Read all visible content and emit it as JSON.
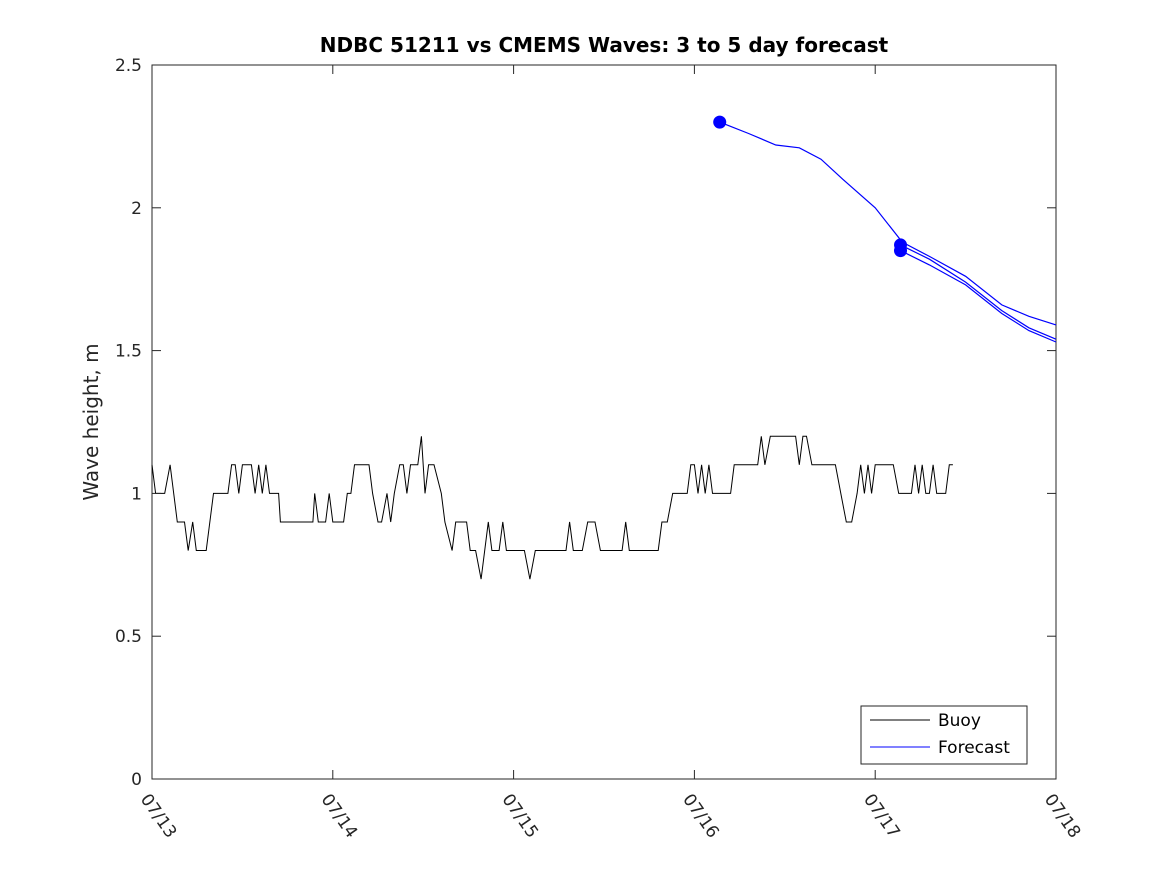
{
  "chart_data": {
    "type": "line",
    "title": "NDBC 51211 vs CMEMS Waves: 3 to 5 day forecast",
    "xlabel": "",
    "ylabel": "Wave height, m",
    "xlim": [
      0,
      5
    ],
    "ylim": [
      0,
      2.5
    ],
    "x_tick_labels": [
      "07/13",
      "07/14",
      "07/15",
      "07/16",
      "07/17",
      "07/18"
    ],
    "y_tick_labels": [
      "0",
      "0.5",
      "1",
      "1.5",
      "2",
      "2.5"
    ],
    "y_ticks": [
      0,
      0.5,
      1,
      1.5,
      2,
      2.5
    ],
    "grid": false,
    "legend": {
      "placement": "bottom-right",
      "entries": [
        "Buoy",
        "Forecast"
      ]
    },
    "series": [
      {
        "name": "Buoy",
        "color": "#000000",
        "points": [
          [
            0.0,
            1.1
          ],
          [
            0.02,
            1.0
          ],
          [
            0.07,
            1.0
          ],
          [
            0.1,
            1.1
          ],
          [
            0.14,
            0.9
          ],
          [
            0.18,
            0.9
          ],
          [
            0.2,
            0.8
          ],
          [
            0.225,
            0.9
          ],
          [
            0.245,
            0.8
          ],
          [
            0.3,
            0.8
          ],
          [
            0.34,
            1.0
          ],
          [
            0.42,
            1.0
          ],
          [
            0.44,
            1.1
          ],
          [
            0.46,
            1.1
          ],
          [
            0.48,
            1.0
          ],
          [
            0.5,
            1.1
          ],
          [
            0.55,
            1.1
          ],
          [
            0.57,
            1.0
          ],
          [
            0.59,
            1.1
          ],
          [
            0.61,
            1.0
          ],
          [
            0.63,
            1.1
          ],
          [
            0.65,
            1.0
          ],
          [
            0.7,
            1.0
          ],
          [
            0.71,
            0.9
          ],
          [
            0.89,
            0.9
          ],
          [
            0.9,
            1.0
          ],
          [
            0.92,
            0.9
          ],
          [
            0.96,
            0.9
          ],
          [
            0.98,
            1.0
          ],
          [
            1.0,
            0.9
          ],
          [
            1.06,
            0.9
          ],
          [
            1.08,
            1.0
          ],
          [
            1.1,
            1.0
          ],
          [
            1.12,
            1.1
          ],
          [
            1.2,
            1.1
          ],
          [
            1.22,
            1.0
          ],
          [
            1.25,
            0.9
          ],
          [
            1.27,
            0.9
          ],
          [
            1.3,
            1.0
          ],
          [
            1.32,
            0.9
          ],
          [
            1.34,
            1.0
          ],
          [
            1.37,
            1.1
          ],
          [
            1.39,
            1.1
          ],
          [
            1.41,
            1.0
          ],
          [
            1.43,
            1.1
          ],
          [
            1.45,
            1.1
          ],
          [
            1.47,
            1.1
          ],
          [
            1.49,
            1.2
          ],
          [
            1.51,
            1.0
          ],
          [
            1.53,
            1.1
          ],
          [
            1.56,
            1.1
          ],
          [
            1.6,
            1.0
          ],
          [
            1.62,
            0.9
          ],
          [
            1.66,
            0.8
          ],
          [
            1.68,
            0.9
          ],
          [
            1.74,
            0.9
          ],
          [
            1.76,
            0.8
          ],
          [
            1.79,
            0.8
          ],
          [
            1.82,
            0.7
          ],
          [
            1.86,
            0.9
          ],
          [
            1.88,
            0.8
          ],
          [
            1.92,
            0.8
          ],
          [
            1.94,
            0.9
          ],
          [
            1.96,
            0.8
          ],
          [
            2.06,
            0.8
          ],
          [
            2.09,
            0.7
          ],
          [
            2.12,
            0.8
          ],
          [
            2.29,
            0.8
          ],
          [
            2.31,
            0.9
          ],
          [
            2.33,
            0.8
          ],
          [
            2.38,
            0.8
          ],
          [
            2.41,
            0.9
          ],
          [
            2.45,
            0.9
          ],
          [
            2.48,
            0.8
          ],
          [
            2.6,
            0.8
          ],
          [
            2.62,
            0.9
          ],
          [
            2.64,
            0.8
          ],
          [
            2.8,
            0.8
          ],
          [
            2.82,
            0.9
          ],
          [
            2.85,
            0.9
          ],
          [
            2.88,
            1.0
          ],
          [
            2.96,
            1.0
          ],
          [
            2.98,
            1.1
          ],
          [
            3.0,
            1.1
          ],
          [
            3.02,
            1.0
          ],
          [
            3.04,
            1.1
          ],
          [
            3.06,
            1.0
          ],
          [
            3.08,
            1.1
          ],
          [
            3.1,
            1.0
          ],
          [
            3.2,
            1.0
          ],
          [
            3.22,
            1.1
          ],
          [
            3.35,
            1.1
          ],
          [
            3.37,
            1.2
          ],
          [
            3.39,
            1.1
          ],
          [
            3.42,
            1.2
          ],
          [
            3.56,
            1.2
          ],
          [
            3.58,
            1.1
          ],
          [
            3.6,
            1.2
          ],
          [
            3.62,
            1.2
          ],
          [
            3.65,
            1.1
          ],
          [
            3.78,
            1.1
          ],
          [
            3.81,
            1.0
          ],
          [
            3.84,
            0.9
          ],
          [
            3.87,
            0.9
          ],
          [
            3.9,
            1.0
          ],
          [
            3.92,
            1.1
          ],
          [
            3.94,
            1.0
          ],
          [
            3.96,
            1.1
          ],
          [
            3.98,
            1.0
          ],
          [
            4.0,
            1.1
          ],
          [
            4.08,
            1.1
          ],
          [
            4.1,
            1.1
          ],
          [
            4.13,
            1.0
          ],
          [
            4.2,
            1.0
          ],
          [
            4.22,
            1.1
          ],
          [
            4.24,
            1.0
          ],
          [
            4.26,
            1.1
          ],
          [
            4.28,
            1.0
          ],
          [
            4.3,
            1.0
          ],
          [
            4.32,
            1.1
          ],
          [
            4.34,
            1.0
          ],
          [
            4.39,
            1.0
          ],
          [
            4.41,
            1.1
          ],
          [
            4.43,
            1.1
          ]
        ]
      },
      {
        "name": "Forecast",
        "color": "#0000ff",
        "lines": [
          [
            [
              3.14,
              2.3
            ],
            [
              3.3,
              2.26
            ],
            [
              3.45,
              2.22
            ],
            [
              3.58,
              2.21
            ],
            [
              3.7,
              2.17
            ],
            [
              3.82,
              2.1
            ],
            [
              4.0,
              2.0
            ],
            [
              4.15,
              1.88
            ],
            [
              4.3,
              1.83
            ],
            [
              4.5,
              1.76
            ],
            [
              4.7,
              1.66
            ],
            [
              4.85,
              1.62
            ],
            [
              5.0,
              1.59
            ]
          ],
          [
            [
              4.14,
              1.87
            ],
            [
              4.3,
              1.82
            ],
            [
              4.5,
              1.74
            ],
            [
              4.7,
              1.64
            ],
            [
              4.85,
              1.58
            ],
            [
              5.0,
              1.54
            ]
          ],
          [
            [
              4.14,
              1.85
            ],
            [
              4.3,
              1.8
            ],
            [
              4.5,
              1.73
            ],
            [
              4.7,
              1.63
            ],
            [
              4.85,
              1.57
            ],
            [
              5.0,
              1.53
            ]
          ]
        ],
        "markers": [
          [
            3.14,
            2.3
          ],
          [
            4.14,
            1.87
          ],
          [
            4.14,
            1.85
          ]
        ]
      }
    ]
  }
}
